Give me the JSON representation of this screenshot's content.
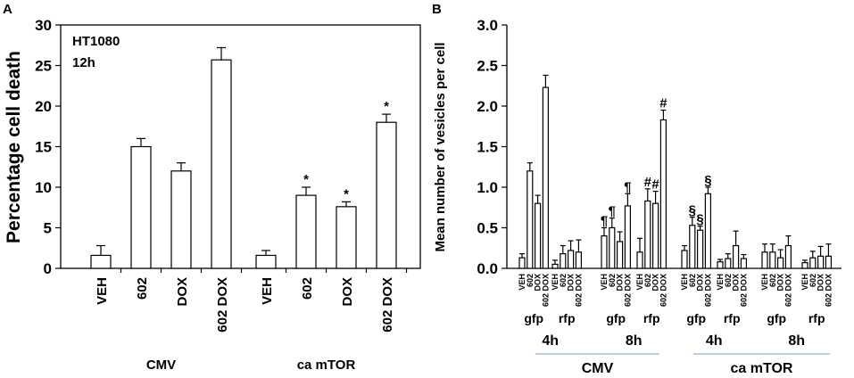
{
  "chart_data": [
    {
      "panel": "A",
      "type": "bar",
      "ylabel": "Percentage cell death",
      "ylim": [
        0,
        30
      ],
      "yticks": [
        0,
        5,
        10,
        15,
        20,
        25,
        30
      ],
      "annotations": [
        "HT1080",
        "12h"
      ],
      "groups": [
        {
          "label": "CMV",
          "bars": [
            {
              "label": "VEH",
              "value": 1.6,
              "err": 1.2,
              "sig": ""
            },
            {
              "label": "602",
              "value": 15.0,
              "err": 1.0,
              "sig": ""
            },
            {
              "label": "DOX",
              "value": 12.0,
              "err": 1.0,
              "sig": ""
            },
            {
              "label": "602 DOX",
              "value": 25.7,
              "err": 1.5,
              "sig": ""
            }
          ]
        },
        {
          "label": "ca mTOR",
          "bars": [
            {
              "label": "VEH",
              "value": 1.6,
              "err": 0.6,
              "sig": ""
            },
            {
              "label": "602",
              "value": 9.0,
              "err": 1.0,
              "sig": "*"
            },
            {
              "label": "DOX",
              "value": 7.6,
              "err": 0.6,
              "sig": "*"
            },
            {
              "label": "602 DOX",
              "value": 18.0,
              "err": 1.0,
              "sig": "*"
            }
          ]
        }
      ]
    },
    {
      "panel": "B",
      "type": "bar",
      "ylabel": "Mean number of vesicles per cell",
      "ylim": [
        0,
        3.0
      ],
      "yticks": [
        "0.0",
        "0.5",
        "1.0",
        "1.5",
        "2.0",
        "2.5",
        "3.0"
      ],
      "bar_labels": [
        "VEH",
        "602",
        "DOX",
        "602 DOX"
      ],
      "clusters": [
        {
          "label": "gfp",
          "values": [
            0.13,
            1.2,
            0.8,
            2.23
          ],
          "errs": [
            0.05,
            0.1,
            0.1,
            0.15
          ],
          "sig": [
            "",
            "",
            "",
            ""
          ]
        },
        {
          "label": "rfp",
          "values": [
            0.05,
            0.18,
            0.22,
            0.2
          ],
          "errs": [
            0.05,
            0.1,
            0.12,
            0.15
          ],
          "sig": [
            "",
            "",
            "",
            ""
          ]
        },
        {
          "label": "gfp",
          "values": [
            0.4,
            0.5,
            0.33,
            0.77
          ],
          "errs": [
            0.1,
            0.12,
            0.12,
            0.15
          ],
          "sig": [
            "¶",
            "¶",
            "",
            "¶"
          ]
        },
        {
          "label": "rfp",
          "values": [
            0.2,
            0.83,
            0.8,
            1.83
          ],
          "errs": [
            0.17,
            0.15,
            0.15,
            0.12
          ],
          "sig": [
            "",
            "#",
            "#",
            "#"
          ]
        },
        {
          "label": "gfp",
          "values": [
            0.22,
            0.53,
            0.47,
            0.92
          ],
          "errs": [
            0.06,
            0.1,
            0.05,
            0.08
          ],
          "sig": [
            "",
            "§",
            "§",
            "§"
          ]
        },
        {
          "label": "rfp",
          "values": [
            0.08,
            0.12,
            0.28,
            0.12
          ],
          "errs": [
            0.03,
            0.06,
            0.18,
            0.05
          ],
          "sig": [
            "",
            "",
            "",
            ""
          ]
        },
        {
          "label": "gfp",
          "values": [
            0.2,
            0.2,
            0.13,
            0.28
          ],
          "errs": [
            0.1,
            0.1,
            0.1,
            0.12
          ],
          "sig": [
            "",
            "",
            "",
            ""
          ]
        },
        {
          "label": "rfp",
          "values": [
            0.07,
            0.13,
            0.15,
            0.15
          ],
          "errs": [
            0.03,
            0.08,
            0.12,
            0.15
          ],
          "sig": [
            "",
            "",
            "",
            ""
          ]
        }
      ],
      "time_labels": [
        "4h",
        "8h",
        "4h",
        "8h"
      ],
      "condition_labels": [
        "CMV",
        "ca mTOR"
      ]
    }
  ]
}
